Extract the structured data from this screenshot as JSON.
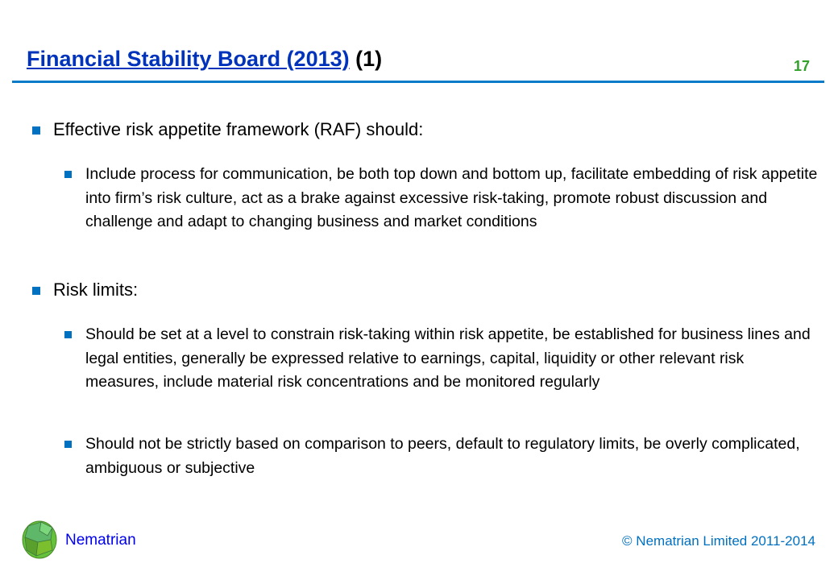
{
  "slide": {
    "title_link": "Financial Stability Board (2013)",
    "title_suffix": "(1)",
    "page_number": "17",
    "accent_color": "#0070C0"
  },
  "bullets": [
    {
      "level": 1,
      "text": "Effective risk appetite framework (RAF) should:"
    },
    {
      "level": 2,
      "text": "Include process for communication, be both top down and bottom up, facilitate embedding of risk appetite into firm’s risk culture, act as a brake against excessive risk-taking, promote robust discussion and challenge and adapt to changing business and market conditions"
    },
    {
      "level": 1,
      "text": "Risk limits:"
    },
    {
      "level": 2,
      "text": "Should be set at a level to constrain risk-taking within risk appetite, be established for business lines and legal entities, generally be expressed relative to earnings, capital, liquidity or other relevant risk measures, include material risk concentrations and be monitored regularly"
    },
    {
      "level": 2,
      "text": "Should not be strictly based on comparison to peers, default to regulatory limits, be overly complicated, ambiguous or subjective"
    }
  ],
  "footer": {
    "brand": "Nematrian",
    "copyright": "© Nematrian Limited 2011-2014",
    "logo_icon": "green-polyhedron-icon"
  }
}
